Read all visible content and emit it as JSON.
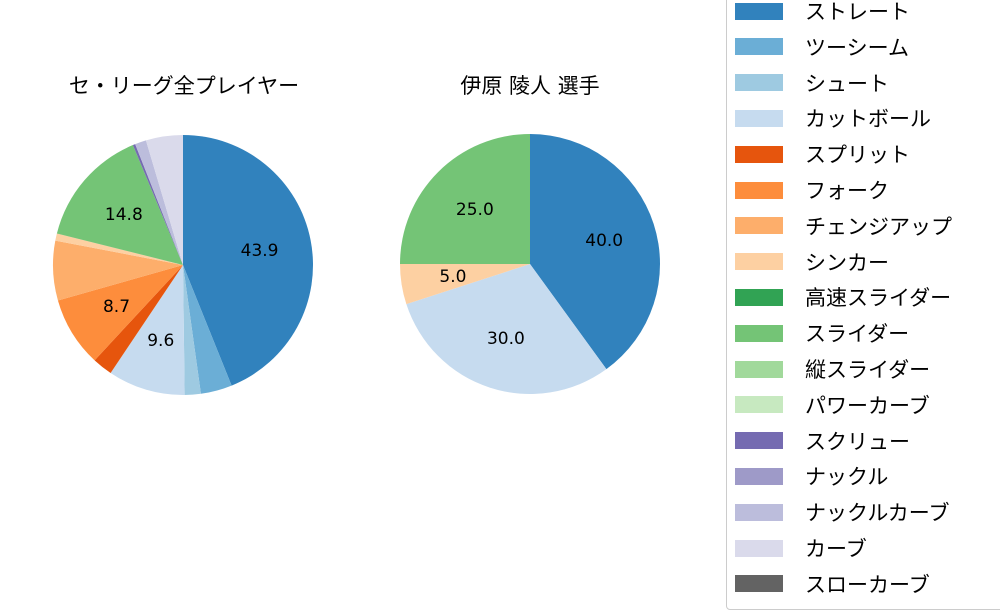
{
  "chart_data": [
    {
      "type": "pie",
      "title": "セ・リーグ全プレイヤー",
      "center": [
        183,
        265
      ],
      "radius": 130,
      "categories": [
        "ストレート",
        "ツーシーム",
        "シュート",
        "カットボール",
        "スプリット",
        "フォーク",
        "チェンジアップ",
        "シンカー",
        "スライダー",
        "スクリュー",
        "ナックルカーブ",
        "カーブ"
      ],
      "values": [
        43.9,
        3.9,
        2.0,
        9.6,
        2.5,
        8.7,
        7.4,
        0.9,
        14.8,
        0.3,
        1.4,
        4.6
      ],
      "colors": [
        "#3182bd",
        "#6baed6",
        "#9ecae1",
        "#c6dbef",
        "#e6550d",
        "#fd8d3c",
        "#fdae6b",
        "#fdd0a2",
        "#74c476",
        "#756bb1",
        "#bcbddc",
        "#dadaeb"
      ],
      "labels_shown": [
        "43.9",
        "",
        "",
        "9.6",
        "",
        "8.7",
        "",
        "",
        "14.8",
        "",
        "",
        ""
      ]
    },
    {
      "type": "pie",
      "title": "伊原 陵人  選手",
      "center": [
        530,
        264
      ],
      "radius": 130,
      "categories": [
        "ストレート",
        "カットボール",
        "シンカー",
        "スライダー"
      ],
      "values": [
        40.0,
        30.0,
        5.0,
        25.0
      ],
      "colors": [
        "#3182bd",
        "#c6dbef",
        "#fdd0a2",
        "#74c476"
      ],
      "labels_shown": [
        "40.0",
        "30.0",
        "5.0",
        "25.0"
      ]
    }
  ],
  "titles": {
    "left": "セ・リーグ全プレイヤー",
    "right": "伊原 陵人  選手"
  },
  "legend": [
    {
      "label": "ストレート",
      "color": "#3182bd"
    },
    {
      "label": "ツーシーム",
      "color": "#6baed6"
    },
    {
      "label": "シュート",
      "color": "#9ecae1"
    },
    {
      "label": "カットボール",
      "color": "#c6dbef"
    },
    {
      "label": "スプリット",
      "color": "#e6550d"
    },
    {
      "label": "フォーク",
      "color": "#fd8d3c"
    },
    {
      "label": "チェンジアップ",
      "color": "#fdae6b"
    },
    {
      "label": "シンカー",
      "color": "#fdd0a2"
    },
    {
      "label": "高速スライダー",
      "color": "#31a354"
    },
    {
      "label": "スライダー",
      "color": "#74c476"
    },
    {
      "label": "縦スライダー",
      "color": "#a1d99b"
    },
    {
      "label": "パワーカーブ",
      "color": "#c7e9c0"
    },
    {
      "label": "スクリュー",
      "color": "#756bb1"
    },
    {
      "label": "ナックル",
      "color": "#9e9ac8"
    },
    {
      "label": "ナックルカーブ",
      "color": "#bcbddc"
    },
    {
      "label": "カーブ",
      "color": "#dadaeb"
    },
    {
      "label": "スローカーブ",
      "color": "#636363"
    }
  ]
}
